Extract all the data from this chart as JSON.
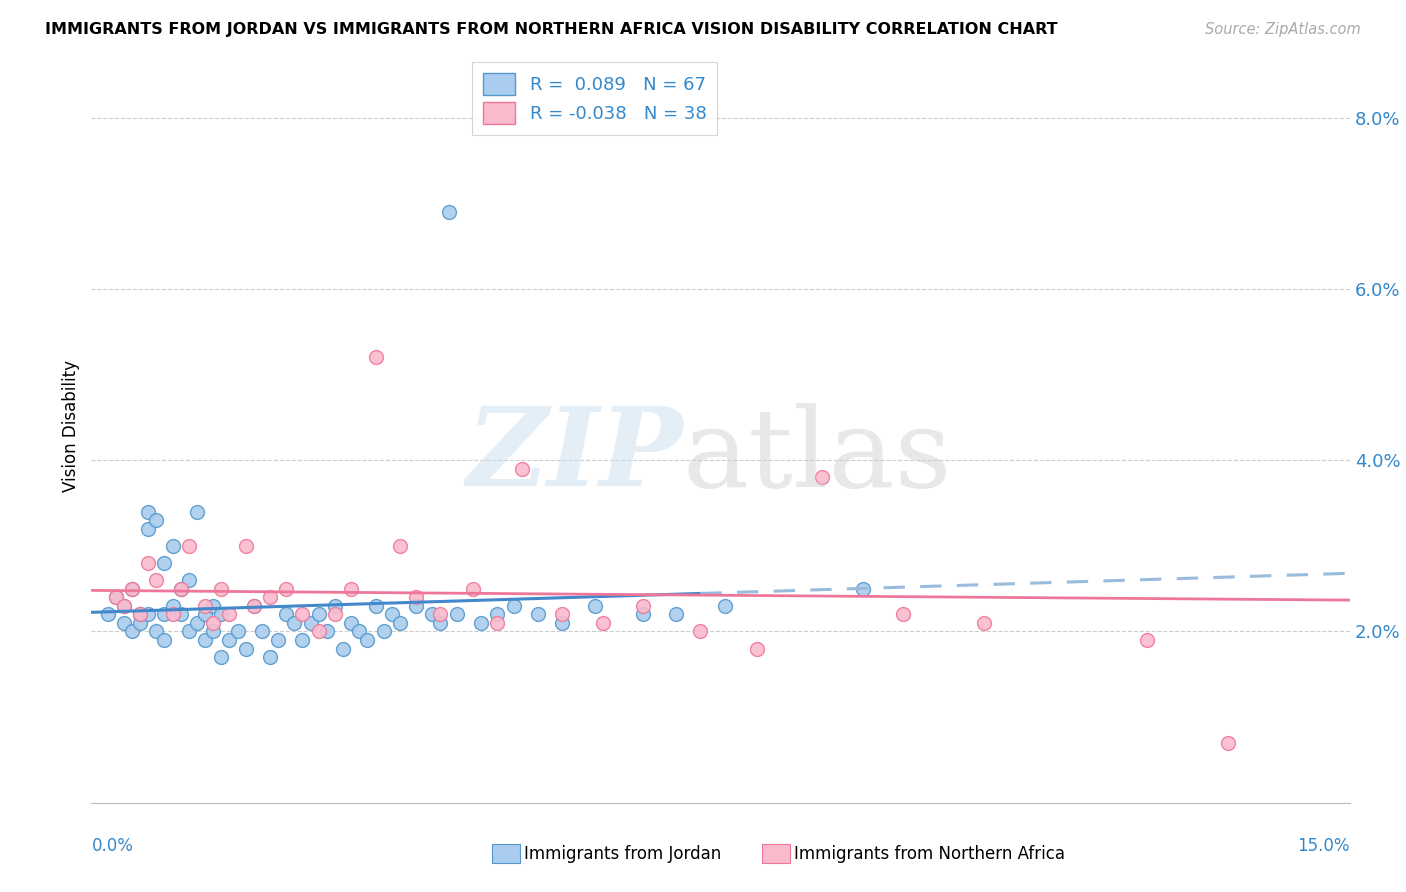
{
  "title": "IMMIGRANTS FROM JORDAN VS IMMIGRANTS FROM NORTHERN AFRICA VISION DISABILITY CORRELATION CHART",
  "source": "Source: ZipAtlas.com",
  "ylabel": "Vision Disability",
  "y_ticks": [
    0.0,
    0.02,
    0.04,
    0.06,
    0.08
  ],
  "y_tick_labels": [
    "",
    "2.0%",
    "4.0%",
    "6.0%",
    "8.0%"
  ],
  "x_lim": [
    0.0,
    0.155
  ],
  "y_lim": [
    0.0,
    0.088
  ],
  "jordan_color": "#aaccee",
  "jordan_edge_color": "#5599cc",
  "na_color": "#f9bbcc",
  "na_edge_color": "#ee7799",
  "jordan_R": 0.089,
  "jordan_N": 67,
  "na_R": -0.038,
  "na_N": 38,
  "legend_label_jordan": "R =  0.089   N = 67",
  "legend_label_na": "R = -0.038   N = 38",
  "jordan_line_color": "#4488cc",
  "jordan_line_dashed_color": "#99bbdd",
  "na_line_color": "#ee7799",
  "jordan_x": [
    0.002,
    0.003,
    0.004,
    0.004,
    0.005,
    0.005,
    0.006,
    0.006,
    0.007,
    0.007,
    0.007,
    0.008,
    0.008,
    0.009,
    0.009,
    0.009,
    0.01,
    0.01,
    0.011,
    0.011,
    0.012,
    0.012,
    0.013,
    0.013,
    0.014,
    0.014,
    0.015,
    0.015,
    0.016,
    0.016,
    0.017,
    0.018,
    0.019,
    0.02,
    0.021,
    0.022,
    0.023,
    0.024,
    0.025,
    0.026,
    0.027,
    0.028,
    0.029,
    0.03,
    0.031,
    0.032,
    0.033,
    0.034,
    0.035,
    0.036,
    0.037,
    0.038,
    0.04,
    0.042,
    0.043,
    0.044,
    0.045,
    0.048,
    0.05,
    0.052,
    0.055,
    0.058,
    0.062,
    0.068,
    0.072,
    0.078,
    0.095
  ],
  "jordan_y": [
    0.022,
    0.024,
    0.021,
    0.023,
    0.02,
    0.025,
    0.021,
    0.022,
    0.034,
    0.032,
    0.022,
    0.033,
    0.02,
    0.028,
    0.022,
    0.019,
    0.03,
    0.023,
    0.025,
    0.022,
    0.026,
    0.02,
    0.034,
    0.021,
    0.022,
    0.019,
    0.023,
    0.02,
    0.022,
    0.017,
    0.019,
    0.02,
    0.018,
    0.023,
    0.02,
    0.017,
    0.019,
    0.022,
    0.021,
    0.019,
    0.021,
    0.022,
    0.02,
    0.023,
    0.018,
    0.021,
    0.02,
    0.019,
    0.023,
    0.02,
    0.022,
    0.021,
    0.023,
    0.022,
    0.021,
    0.069,
    0.022,
    0.021,
    0.022,
    0.023,
    0.022,
    0.021,
    0.023,
    0.022,
    0.022,
    0.023,
    0.025
  ],
  "na_x": [
    0.003,
    0.004,
    0.005,
    0.006,
    0.007,
    0.008,
    0.01,
    0.011,
    0.012,
    0.014,
    0.015,
    0.016,
    0.017,
    0.019,
    0.02,
    0.022,
    0.024,
    0.026,
    0.028,
    0.03,
    0.032,
    0.035,
    0.038,
    0.04,
    0.043,
    0.047,
    0.05,
    0.053,
    0.058,
    0.063,
    0.068,
    0.075,
    0.082,
    0.09,
    0.1,
    0.11,
    0.13,
    0.14
  ],
  "na_y": [
    0.024,
    0.023,
    0.025,
    0.022,
    0.028,
    0.026,
    0.022,
    0.025,
    0.03,
    0.023,
    0.021,
    0.025,
    0.022,
    0.03,
    0.023,
    0.024,
    0.025,
    0.022,
    0.02,
    0.022,
    0.025,
    0.052,
    0.03,
    0.024,
    0.022,
    0.025,
    0.021,
    0.039,
    0.022,
    0.021,
    0.023,
    0.02,
    0.018,
    0.038,
    0.022,
    0.021,
    0.019,
    0.007
  ]
}
